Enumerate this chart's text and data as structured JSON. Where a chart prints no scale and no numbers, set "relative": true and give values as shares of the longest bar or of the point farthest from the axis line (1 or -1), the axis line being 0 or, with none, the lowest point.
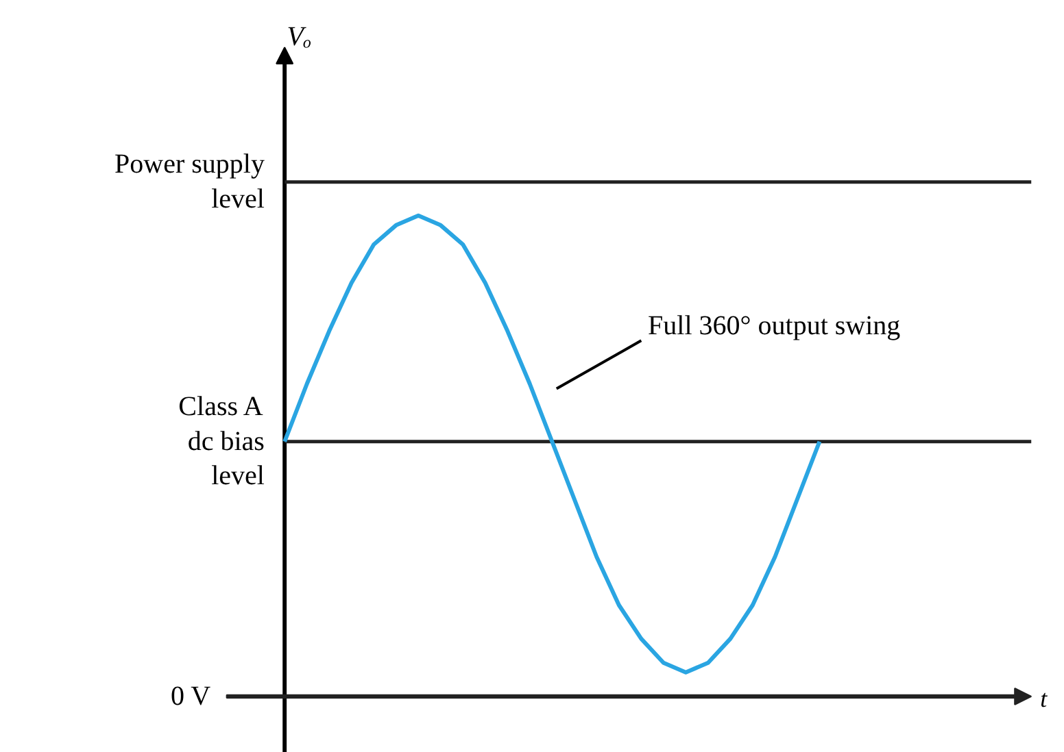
{
  "chart_data": {
    "type": "line",
    "relative": true,
    "xlabel": "t",
    "categories": [
      null,
      null,
      null,
      null,
      null,
      null,
      null,
      null,
      null,
      null,
      null,
      null,
      null,
      null,
      null,
      null,
      null,
      null,
      null,
      null,
      null,
      null,
      null,
      null,
      null,
      null,
      null,
      null,
      null,
      null,
      null,
      null,
      null,
      null
    ],
    "series": [
      {
        "color": "#2aa5e2",
        "values": [
          0.53,
          0.65,
          0.76,
          0.86,
          0.94,
          0.98,
          1,
          0.98,
          0.94,
          0.86,
          0.76,
          0.65,
          0.53,
          0.41,
          0.29,
          0.19,
          0.12,
          0.07,
          0.05,
          0.07,
          0.12,
          0.19,
          0.29,
          0.41,
          0.53,
          null,
          null,
          null,
          null,
          null,
          null,
          null,
          null,
          null
        ]
      }
    ],
    "ref_lines": [
      {
        "axis": "y",
        "value": 1.07,
        "label": "Power supply\nlevel",
        "color": "#222222"
      },
      {
        "axis": "y",
        "value": 0.53,
        "label": "Class A\ndc bias\nlevel",
        "color": "#222222"
      },
      {
        "axis": "y",
        "value": 0,
        "label": "0 V",
        "color": "#222222"
      }
    ],
    "annotations": [
      "Vₒ",
      "Full 360° output swing"
    ],
    "grid": false,
    "marker": "none",
    "line_style": "solid"
  }
}
